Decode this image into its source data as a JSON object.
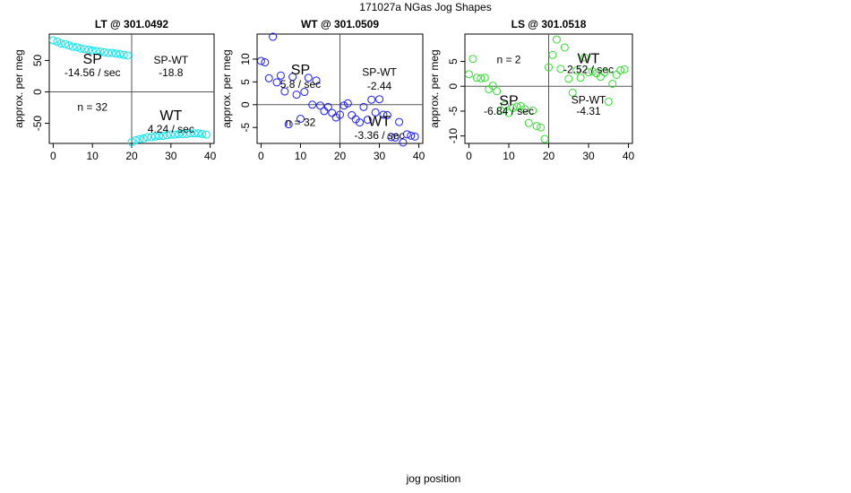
{
  "figure": {
    "title": "171027a   NGas Jog Shapes",
    "xlabel": "jog position"
  },
  "chart_data": [
    {
      "type": "scatter",
      "title": "LT @ 301.0492",
      "xlabel": "",
      "ylabel": "approx. per meg",
      "xlim": [
        -1,
        41
      ],
      "ylim": [
        -82,
        92
      ],
      "xticks": [
        0,
        10,
        20,
        30,
        40
      ],
      "yticks": [
        -50,
        0,
        50
      ],
      "vline": 20,
      "hline": 0,
      "point_color": "#00e5ee",
      "annotations": {
        "sp_label": "SP",
        "sp_rate": "-14.56 / sec",
        "spwt_label": "SP-WT",
        "spwt_value": "-18.8",
        "n_label": "n = 32",
        "wt_label": "WT",
        "wt_rate": "4.24 / sec"
      },
      "x": [
        0,
        1,
        2,
        3,
        4,
        5,
        6,
        7,
        8,
        9,
        10,
        11,
        12,
        13,
        14,
        15,
        16,
        17,
        18,
        19,
        20,
        21,
        22,
        23,
        24,
        25,
        26,
        27,
        28,
        29,
        30,
        31,
        32,
        33,
        34,
        35,
        36,
        37,
        38,
        39
      ],
      "y": [
        82,
        80,
        77,
        76,
        74,
        72,
        71,
        69,
        68,
        67,
        66,
        65,
        64,
        63,
        62,
        62,
        61,
        60,
        59,
        58,
        -80,
        -77,
        -75,
        -74,
        -72,
        -72,
        -71,
        -70,
        -70,
        -69,
        -68,
        -68,
        -67,
        -67,
        -67,
        -66,
        -66,
        -66,
        -67,
        -68
      ]
    },
    {
      "type": "scatter",
      "title": "WT @ 301.0509",
      "xlabel": "",
      "ylabel": "approx. per meg",
      "xlim": [
        -1,
        41
      ],
      "ylim": [
        -8.5,
        15.5
      ],
      "xticks": [
        0,
        10,
        20,
        30,
        40
      ],
      "yticks": [
        -5,
        0,
        5,
        10
      ],
      "vline": 20,
      "hline": 0,
      "point_color": "#1a1aff",
      "annotations": {
        "sp_label": "SP",
        "sp_rate": "5.8 / sec",
        "spwt_label": "SP-WT",
        "spwt_value": "-2.44",
        "n_label": "n = 32",
        "wt_label": "WT",
        "wt_rate": "-3.36 / sec"
      },
      "x": [
        0,
        1,
        2,
        3,
        4,
        5,
        6,
        7,
        8,
        9,
        10,
        11,
        12,
        13,
        14,
        15,
        16,
        17,
        18,
        19,
        20,
        21,
        22,
        23,
        24,
        25,
        26,
        27,
        28,
        29,
        30,
        31,
        32,
        33,
        34,
        35,
        36,
        37,
        38,
        39
      ],
      "y": [
        9.6,
        9.3,
        5.8,
        14.9,
        4.9,
        6.4,
        2.9,
        -4.3,
        6.1,
        2.2,
        -3.1,
        2.8,
        5.9,
        0,
        5.3,
        -0.2,
        -1.4,
        -0.5,
        -1.8,
        -2.8,
        -2.2,
        -0.2,
        0.3,
        -2.3,
        -3.2,
        -3.9,
        -0.5,
        -3.3,
        1.1,
        -1.7,
        1.2,
        -2.2,
        -2.3,
        -7.1,
        -7.2,
        -3.8,
        -8.3,
        -6.5,
        -6.8,
        -7.0
      ]
    },
    {
      "type": "scatter",
      "title": "LS @ 301.0518",
      "xlabel": "",
      "ylabel": "approx. per meg",
      "xlim": [
        -1,
        41
      ],
      "ylim": [
        -11.5,
        10.5
      ],
      "xticks": [
        0,
        10,
        20,
        30,
        40
      ],
      "yticks": [
        -10,
        -5,
        0,
        5
      ],
      "vline": 20,
      "hline": 0,
      "point_color": "#33dd33",
      "annotations": {
        "sp_label": "SP",
        "sp_rate": "-6.84 / sec",
        "spwt_label": "SP-WT",
        "spwt_value": "-4.31",
        "n_label": "n = 2",
        "wt_label": "WT",
        "wt_rate": "-2.52 / sec"
      },
      "x": [
        0,
        1,
        2,
        3,
        4,
        5,
        6,
        7,
        8,
        9,
        10,
        11,
        12,
        13,
        14,
        15,
        16,
        17,
        18,
        19,
        20,
        21,
        22,
        23,
        24,
        25,
        26,
        27,
        28,
        29,
        30,
        31,
        32,
        33,
        34,
        35,
        36,
        37,
        38,
        39
      ],
      "y": [
        2.4,
        5.5,
        1.7,
        1.6,
        1.7,
        -0.6,
        0.1,
        -1.0,
        -4.9,
        -3.8,
        -5.4,
        -4.4,
        -4.1,
        -4.0,
        -4.6,
        -7.4,
        -4.9,
        -8.0,
        -8.3,
        -10.6,
        3.8,
        6.3,
        9.4,
        3.5,
        7.8,
        1.5,
        -1.3,
        3.2,
        1.7,
        5.8,
        2.8,
        3.0,
        2.6,
        1.9,
        2.8,
        -3.1,
        0.5,
        2.3,
        3.2,
        3.4
      ]
    }
  ]
}
